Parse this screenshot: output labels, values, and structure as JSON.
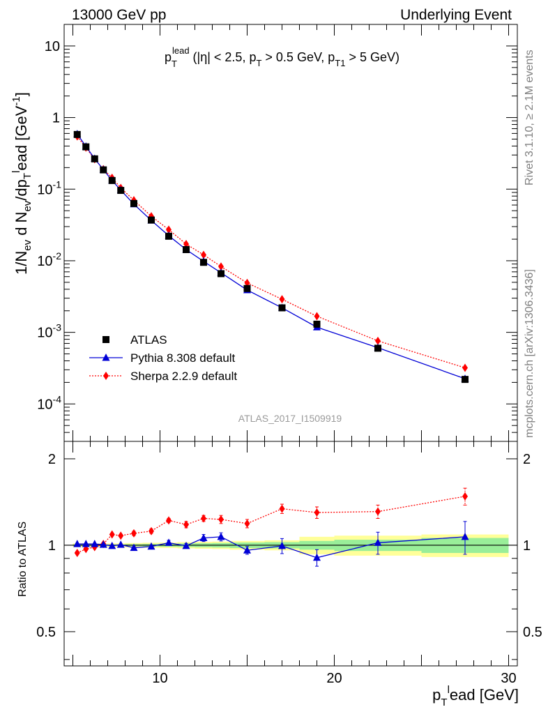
{
  "header": {
    "left": "13000 GeV pp",
    "right": "Underlying Event"
  },
  "side_labels": {
    "rivet": "Rivet 3.1.10, ≥ 2.1M events",
    "mcplots": "mcplots.cern.ch [arXiv:1306.3436]"
  },
  "analysis_id": "ATLAS_2017_I1509919",
  "annotation": {
    "main": "p",
    "sup": "lead",
    "sub": "T",
    "rest": " (|η| < 2.5, p",
    "sub2": "T",
    "rest2": " > 0.5 GeV, p",
    "sub3": "T1",
    "rest3": " > 5 GeV)"
  },
  "axes": {
    "main_ylabel": "1/N_ev d N_ev/dp_T^lead [GeV^-1]",
    "ratio_ylabel": "Ratio to ATLAS",
    "xlabel": "p_T^lead [GeV]"
  },
  "legend": [
    {
      "label": "ATLAS",
      "marker": "square",
      "color": "#000000"
    },
    {
      "label": "Pythia 8.308 default",
      "marker": "triangle",
      "color": "#0000d6"
    },
    {
      "label": "Sherpa 2.2.9 default",
      "marker": "diamond",
      "color": "#ff0000"
    }
  ],
  "chart_data": {
    "type": "line",
    "xlim": [
      4.5,
      30.5
    ],
    "xticks": [
      10,
      20,
      30
    ],
    "main": {
      "yscale": "log",
      "ylim": [
        3e-05,
        20
      ],
      "yticks": [
        {
          "v": 10,
          "b": "10",
          "e": ""
        },
        {
          "v": 1,
          "b": "1",
          "e": ""
        },
        {
          "v": 0.1,
          "b": "10",
          "e": "-1"
        },
        {
          "v": 0.01,
          "b": "10",
          "e": "-2"
        },
        {
          "v": 0.001,
          "b": "10",
          "e": "-3"
        },
        {
          "v": 0.0001,
          "b": "10",
          "e": "-4"
        }
      ]
    },
    "ratio": {
      "yscale": "log",
      "ylim": [
        0.38,
        2.3
      ],
      "yticks": [
        2,
        1,
        0.5
      ]
    },
    "x": [
      5.25,
      5.75,
      6.25,
      6.75,
      7.25,
      7.75,
      8.5,
      9.5,
      10.5,
      11.5,
      12.5,
      13.5,
      15.0,
      17.0,
      19.0,
      22.5,
      27.5
    ],
    "series": [
      {
        "name": "ATLAS",
        "color": "#000000",
        "values": [
          0.58,
          0.39,
          0.265,
          0.186,
          0.132,
          0.096,
          0.063,
          0.037,
          0.022,
          0.0143,
          0.0095,
          0.0066,
          0.0041,
          0.0022,
          0.0013,
          0.0006,
          0.00022
        ],
        "ratio": [
          1,
          1,
          1,
          1,
          1,
          1,
          1,
          1,
          1,
          1,
          1,
          1,
          1,
          1,
          1,
          1,
          1
        ]
      },
      {
        "name": "Pythia 8.308 default",
        "color": "#0000d6",
        "values": [
          0.59,
          0.395,
          0.267,
          0.187,
          0.132,
          0.097,
          0.0617,
          0.0366,
          0.0224,
          0.0143,
          0.0098,
          0.0068,
          0.0039,
          0.0022,
          0.00118,
          0.00061,
          0.000225
        ],
        "ratio": [
          1.01,
          1.01,
          1.01,
          1.005,
          0.995,
          1.005,
          0.98,
          0.99,
          1.02,
          0.995,
          1.06,
          1.07,
          0.96,
          0.995,
          0.905,
          1.02,
          1.07
        ],
        "ratio_err": [
          0.005,
          0.005,
          0.005,
          0.005,
          0.005,
          0.005,
          0.01,
          0.01,
          0.02,
          0.02,
          0.03,
          0.035,
          0.03,
          0.06,
          0.06,
          0.09,
          0.14
        ]
      },
      {
        "name": "Sherpa 2.2.9 default",
        "color": "#ff0000",
        "values": [
          0.545,
          0.38,
          0.262,
          0.19,
          0.144,
          0.104,
          0.07,
          0.0418,
          0.0272,
          0.0171,
          0.0121,
          0.0083,
          0.0049,
          0.0029,
          0.00168,
          0.00076,
          0.00032
        ],
        "ratio": [
          0.94,
          0.97,
          0.985,
          1.01,
          1.09,
          1.08,
          1.1,
          1.12,
          1.22,
          1.18,
          1.24,
          1.23,
          1.19,
          1.34,
          1.3,
          1.31,
          1.48
        ],
        "ratio_err": [
          0.01,
          0.01,
          0.01,
          0.01,
          0.01,
          0.01,
          0.02,
          0.02,
          0.02,
          0.03,
          0.03,
          0.04,
          0.04,
          0.05,
          0.06,
          0.07,
          0.1
        ]
      }
    ],
    "data_band": {
      "x_edges": [
        5.0,
        5.5,
        6.0,
        6.5,
        7.0,
        7.5,
        8.0,
        9.0,
        10.0,
        11.0,
        12.0,
        13.0,
        14.0,
        16.0,
        18.0,
        20.0,
        25.0,
        30.0
      ],
      "stat_half": [
        0.006,
        0.006,
        0.006,
        0.006,
        0.006,
        0.006,
        0.008,
        0.01,
        0.012,
        0.014,
        0.016,
        0.018,
        0.022,
        0.025,
        0.035,
        0.045,
        0.06
      ],
      "total_half": [
        0.015,
        0.015,
        0.015,
        0.015,
        0.015,
        0.015,
        0.018,
        0.02,
        0.022,
        0.025,
        0.028,
        0.03,
        0.035,
        0.04,
        0.07,
        0.08,
        0.09
      ]
    }
  }
}
